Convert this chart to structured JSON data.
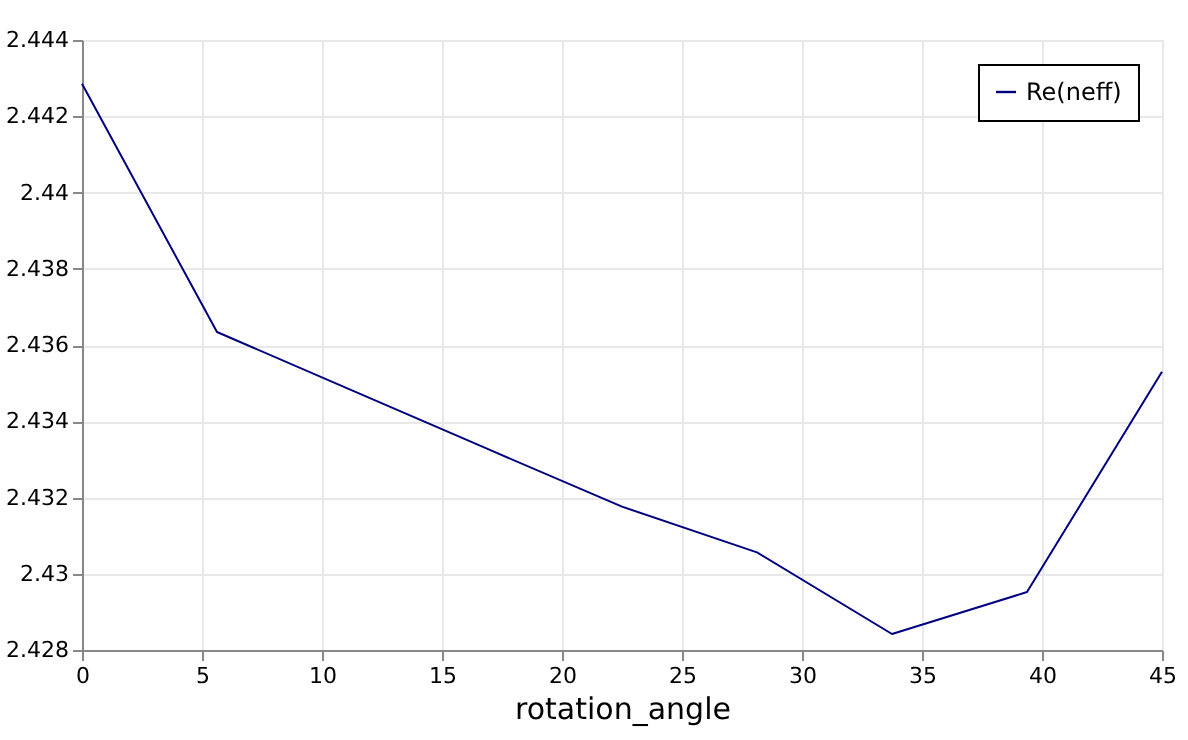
{
  "chart_data": {
    "type": "line",
    "xlabel": "rotation_angle",
    "x": [
      0,
      5.625,
      11.25,
      16.875,
      22.5,
      28.125,
      33.75,
      39.375,
      45
    ],
    "series": [
      {
        "name": "Re(neff)",
        "color": "#00007f",
        "values": [
          2.44285,
          2.43634,
          2.43481,
          2.43328,
          2.43176,
          2.43056,
          2.42842,
          2.42952,
          2.4353
        ]
      }
    ],
    "xlim": [
      0,
      45
    ],
    "xticks": [
      0,
      5,
      10,
      15,
      20,
      25,
      30,
      35,
      40,
      45
    ],
    "ylim": [
      2.428,
      2.444
    ],
    "yticks": [
      2.428,
      2.43,
      2.432,
      2.434,
      2.436,
      2.438,
      2.44,
      2.442,
      2.444
    ],
    "grid": true,
    "legend": "top right",
    "marker": "none",
    "line_style": "solid"
  }
}
